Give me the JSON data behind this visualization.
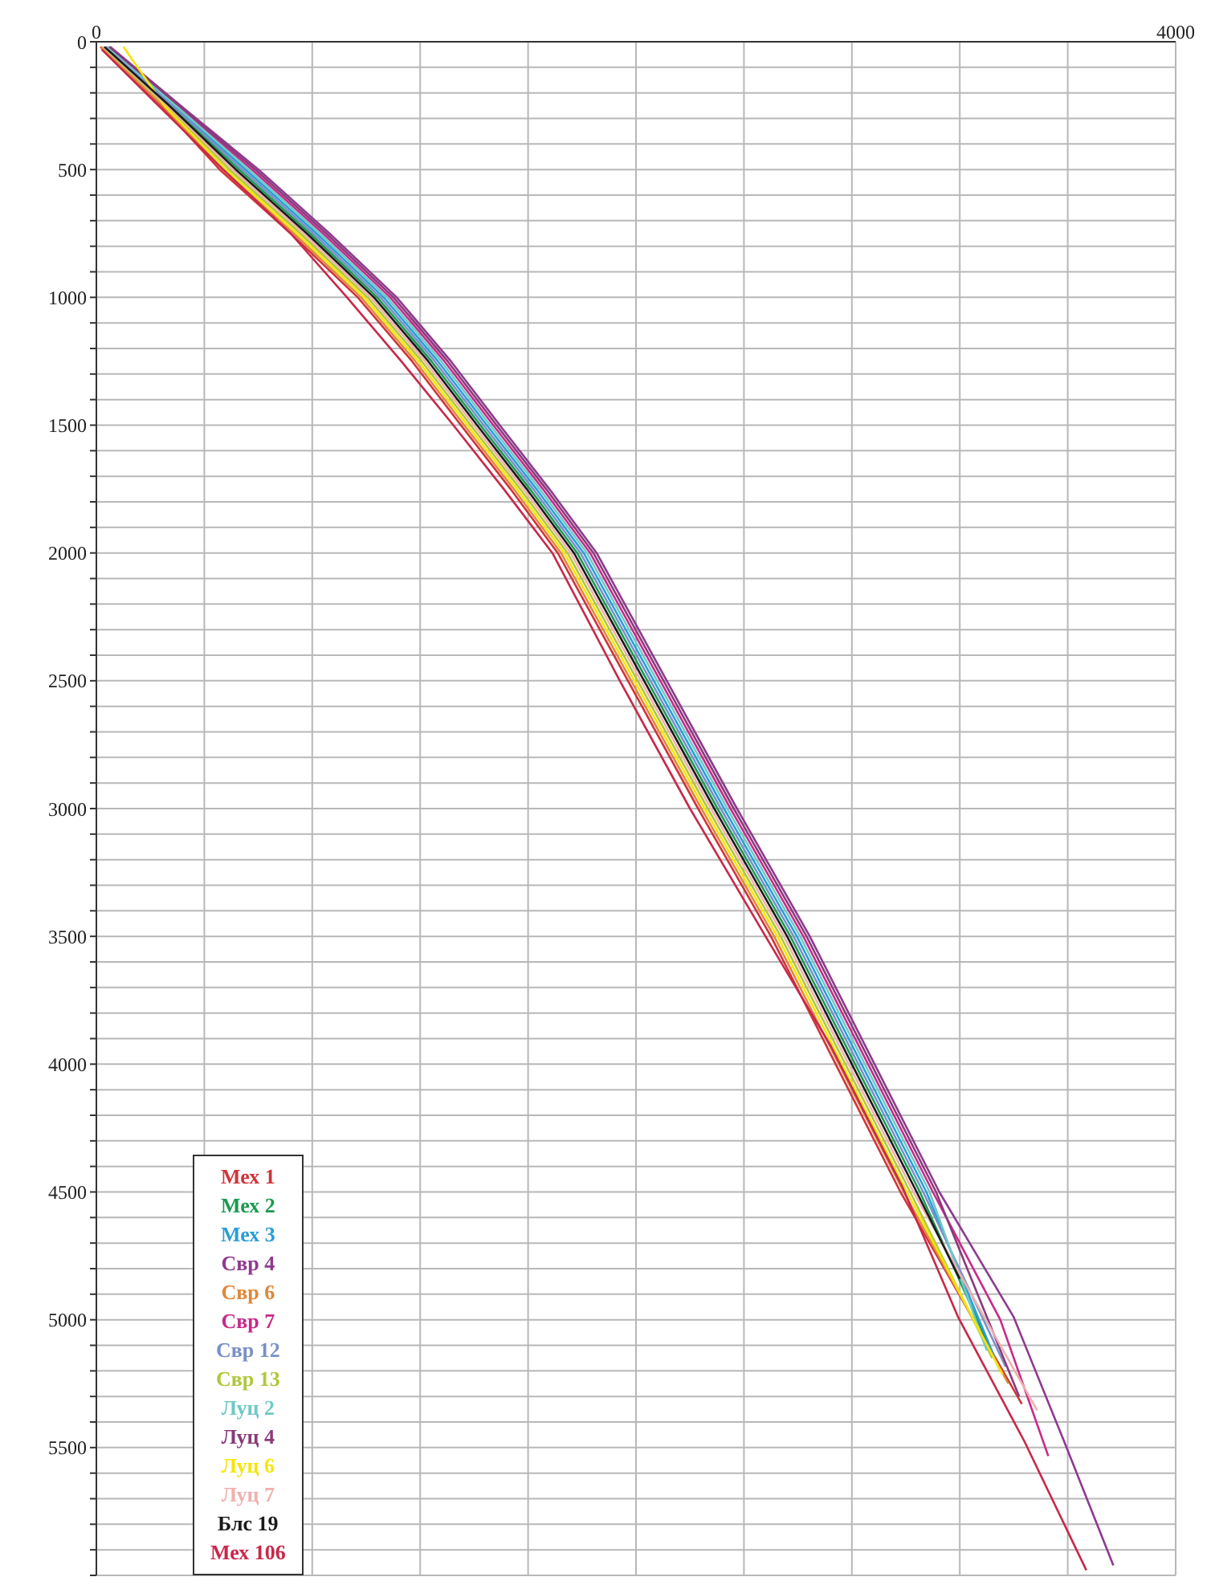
{
  "chart_data": {
    "type": "line",
    "xlim": [
      0,
      4000
    ],
    "ylim": [
      6000,
      0
    ],
    "xticks": [
      0,
      {
        "value": 400,
        "label": null
      },
      {
        "value": 800,
        "label": null
      },
      {
        "value": 1200,
        "label": null
      },
      {
        "value": 1600,
        "label": null
      },
      {
        "value": 2000,
        "label": null
      },
      {
        "value": 2400,
        "label": null
      },
      {
        "value": 2800,
        "label": null
      },
      {
        "value": 3200,
        "label": null
      },
      {
        "value": 3600,
        "label": null
      },
      4000
    ],
    "yticks": [
      0,
      {
        "value": 100,
        "label": null
      },
      {
        "value": 200,
        "label": null
      },
      {
        "value": 300,
        "label": null
      },
      {
        "value": 400,
        "label": null
      },
      500,
      {
        "value": 600,
        "label": null
      },
      {
        "value": 700,
        "label": null
      },
      {
        "value": 800,
        "label": null
      },
      {
        "value": 900,
        "label": null
      },
      1000,
      {
        "value": 1100,
        "label": null
      },
      {
        "value": 1200,
        "label": null
      },
      {
        "value": 1300,
        "label": null
      },
      {
        "value": 1400,
        "label": null
      },
      1500,
      {
        "value": 1600,
        "label": null
      },
      {
        "value": 1700,
        "label": null
      },
      {
        "value": 1800,
        "label": null
      },
      {
        "value": 1900,
        "label": null
      },
      2000,
      {
        "value": 2100,
        "label": null
      },
      {
        "value": 2200,
        "label": null
      },
      {
        "value": 2300,
        "label": null
      },
      {
        "value": 2400,
        "label": null
      },
      2500,
      {
        "value": 2600,
        "label": null
      },
      {
        "value": 2700,
        "label": null
      },
      {
        "value": 2800,
        "label": null
      },
      {
        "value": 2900,
        "label": null
      },
      3000,
      {
        "value": 3100,
        "label": null
      },
      {
        "value": 3200,
        "label": null
      },
      {
        "value": 3300,
        "label": null
      },
      {
        "value": 3400,
        "label": null
      },
      3500,
      {
        "value": 3600,
        "label": null
      },
      {
        "value": 3700,
        "label": null
      },
      {
        "value": 3800,
        "label": null
      },
      {
        "value": 3900,
        "label": null
      },
      4000,
      {
        "value": 4100,
        "label": null
      },
      {
        "value": 4200,
        "label": null
      },
      {
        "value": 4300,
        "label": null
      },
      {
        "value": 4400,
        "label": null
      },
      4500,
      {
        "value": 4600,
        "label": null
      },
      {
        "value": 4700,
        "label": null
      },
      {
        "value": 4800,
        "label": null
      },
      {
        "value": 4900,
        "label": null
      },
      5000,
      {
        "value": 5100,
        "label": null
      },
      {
        "value": 5200,
        "label": null
      },
      {
        "value": 5300,
        "label": null
      },
      {
        "value": 5400,
        "label": null
      },
      5500,
      {
        "value": 5600,
        "label": null
      },
      {
        "value": 5700,
        "label": null
      },
      {
        "value": 5800,
        "label": null
      },
      {
        "value": 5900,
        "label": null
      },
      {
        "value": 6000,
        "label": null
      }
    ],
    "grid": true,
    "legend": "bottom left",
    "marker": "none",
    "line_style": "solid",
    "series": [
      {
        "name": "Мех 1",
        "color": "#d0343a",
        "x": [
          15,
          240,
          457,
          720,
          969,
          1170,
          1351,
          1535,
          1710,
          1970,
          2230,
          2500,
          2740,
          2980,
          3430
        ],
        "values": [
          20,
          250,
          500,
          750,
          1000,
          1250,
          1500,
          1750,
          2000,
          2500,
          3000,
          3500,
          4000,
          4500,
          5330
        ]
      },
      {
        "name": "Мех 2",
        "color": "#1a9a50",
        "x": [
          33,
          276,
          529,
          792,
          1041,
          1242,
          1423,
          1607,
          1782,
          2042,
          2302,
          2572,
          2812,
          3052,
          3350
        ],
        "values": [
          20,
          250,
          500,
          750,
          1000,
          1250,
          1500,
          1750,
          2000,
          2500,
          3000,
          3500,
          4000,
          4500,
          5200
        ]
      },
      {
        "name": "Мех 3",
        "color": "#2a9fd6",
        "x": [
          39,
          288,
          553,
          816,
          1065,
          1266,
          1447,
          1631,
          1806,
          2066,
          2326,
          2596,
          2836,
          3076,
          3330
        ],
        "values": [
          20,
          250,
          500,
          750,
          1000,
          1250,
          1500,
          1750,
          2000,
          2500,
          3000,
          3500,
          4000,
          4500,
          5150
        ]
      },
      {
        "name": "Свр 4",
        "color": "#8e3a90",
        "x": [
          51,
          312,
          601,
          864,
          1113,
          1314,
          1495,
          1679,
          1854,
          2114,
          2374,
          2644,
          2884,
          3124,
          3399,
          3587,
          3769
        ],
        "values": [
          20,
          250,
          500,
          750,
          1000,
          1250,
          1500,
          1750,
          2000,
          2500,
          3000,
          3500,
          4000,
          4500,
          4988,
          5477,
          5961
        ]
      },
      {
        "name": "Свр 6",
        "color": "#e0883a",
        "x": [
          18,
          246,
          469,
          732,
          981,
          1182,
          1363,
          1547,
          1722,
          1982,
          2242,
          2512,
          2752,
          2992,
          3380
        ],
        "values": [
          20,
          250,
          500,
          750,
          1000,
          1250,
          1500,
          1750,
          2000,
          2500,
          3000,
          3500,
          4000,
          4500,
          5250
        ]
      },
      {
        "name": "Свр 7",
        "color": "#c82a8a",
        "x": [
          45,
          300,
          577,
          840,
          1089,
          1290,
          1471,
          1655,
          1830,
          2090,
          2350,
          2620,
          2860,
          3100,
          3350,
          3528
        ],
        "values": [
          20,
          250,
          500,
          750,
          1000,
          1250,
          1500,
          1750,
          2000,
          2500,
          3000,
          3500,
          4000,
          4500,
          5000,
          5533
        ]
      },
      {
        "name": "Свр 12",
        "color": "#7890c8",
        "x": [
          36,
          282,
          541,
          804,
          1053,
          1254,
          1435,
          1619,
          1794,
          2054,
          2314,
          2584,
          2824,
          3064,
          3370
        ],
        "values": [
          20,
          250,
          500,
          750,
          1000,
          1250,
          1500,
          1750,
          2000,
          2500,
          3000,
          3500,
          4000,
          4500,
          5184
        ]
      },
      {
        "name": "Свр 13",
        "color": "#b0c83a",
        "x": [
          24,
          258,
          493,
          756,
          1005,
          1206,
          1387,
          1571,
          1746,
          2006,
          2266,
          2536,
          2776,
          3016,
          3320
        ],
        "values": [
          20,
          250,
          500,
          750,
          1000,
          1250,
          1500,
          1750,
          2000,
          2500,
          3000,
          3500,
          4000,
          4500,
          5150
        ]
      },
      {
        "name": "Луц 2",
        "color": "#70c8c8",
        "x": [
          42,
          294,
          565,
          828,
          1077,
          1278,
          1459,
          1643,
          1818,
          2078,
          2338,
          2608,
          2848,
          3088,
          3300
        ],
        "values": [
          20,
          250,
          500,
          750,
          1000,
          1250,
          1500,
          1750,
          2000,
          2500,
          3000,
          3500,
          4000,
          4500,
          5120
        ]
      },
      {
        "name": "Луц 4",
        "color": "#8a3a7a",
        "x": [
          48,
          306,
          589,
          852,
          1101,
          1302,
          1483,
          1667,
          1842,
          2102,
          2362,
          2632,
          2872,
          3112,
          3420
        ],
        "values": [
          20,
          250,
          500,
          750,
          1000,
          1250,
          1500,
          1750,
          2000,
          2500,
          3000,
          3500,
          4000,
          4500,
          5300
        ]
      },
      {
        "name": "Луц 6",
        "color": "#f5e60a",
        "x": [
          100,
          252,
          481,
          744,
          993,
          1194,
          1375,
          1559,
          1734,
          1994,
          2254,
          2524,
          2764,
          3004,
          3358
        ],
        "values": [
          20,
          250,
          500,
          750,
          1000,
          1250,
          1500,
          1750,
          2000,
          2500,
          3000,
          3500,
          4000,
          4500,
          5214
        ]
      },
      {
        "name": "Луц 7",
        "color": "#f0b0b0",
        "x": [
          27,
          264,
          505,
          768,
          1017,
          1218,
          1399,
          1583,
          1758,
          2018,
          2278,
          2548,
          2788,
          3028,
          3487
        ],
        "values": [
          20,
          250,
          500,
          750,
          1000,
          1250,
          1500,
          1750,
          2000,
          2500,
          3000,
          3500,
          4000,
          4500,
          5355
        ]
      },
      {
        "name": "Блс 19",
        "color": "#1a1a1a",
        "x": [
          30,
          270,
          517,
          780,
          1029,
          1230,
          1411,
          1595,
          1770,
          2030,
          2290,
          2560,
          2800,
          3040,
          3200
        ],
        "values": [
          20,
          250,
          500,
          750,
          1000,
          1250,
          1500,
          1750,
          2000,
          2500,
          3000,
          3500,
          4000,
          4500,
          4840
        ]
      },
      {
        "name": "Мех 106",
        "color": "#c8284a",
        "x": [
          20,
          230,
          470,
          720,
          929,
          1130,
          1323,
          1510,
          1690,
          1940,
          2200,
          2480,
          2722,
          2987,
          3193,
          3440,
          3669
        ],
        "values": [
          30,
          250,
          500,
          750,
          1000,
          1250,
          1500,
          1750,
          2000,
          2500,
          3000,
          3500,
          3929,
          4480,
          4988,
          5477,
          5980
        ]
      }
    ]
  }
}
